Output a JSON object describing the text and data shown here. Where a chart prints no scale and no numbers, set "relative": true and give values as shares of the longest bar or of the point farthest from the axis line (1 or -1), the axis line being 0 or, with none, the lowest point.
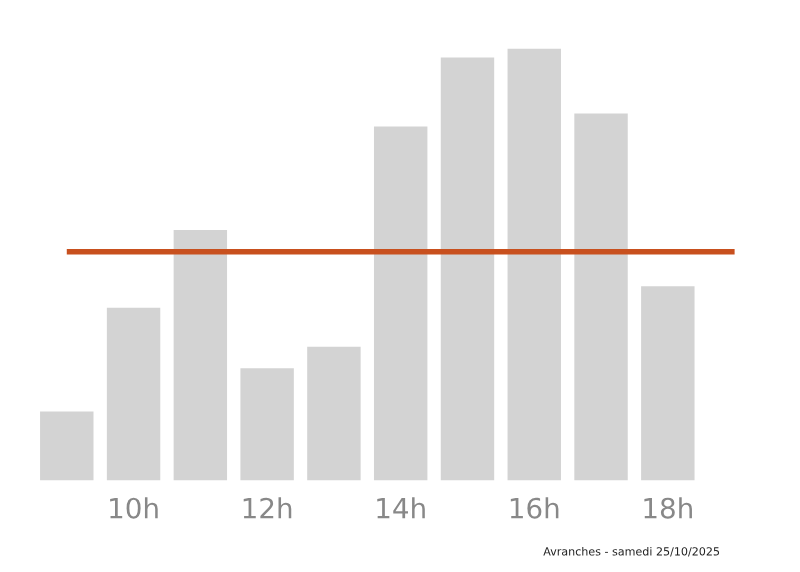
{
  "chart_data": {
    "type": "bar",
    "relative": true,
    "categories": [
      null,
      "10h",
      null,
      "12h",
      null,
      "14h",
      null,
      "16h",
      null,
      "18h"
    ],
    "values": [
      0.16,
      0.4,
      0.58,
      0.26,
      0.31,
      0.82,
      0.98,
      1,
      0.85,
      0.45
    ],
    "color": "#d3d3d3",
    "ref_lines": [
      {
        "axis": "y",
        "value": 0.53,
        "color": "#c8501e"
      }
    ],
    "annotations": [
      "Avranches - samedi 25/10/2025"
    ],
    "grid": false,
    "legend": false
  }
}
